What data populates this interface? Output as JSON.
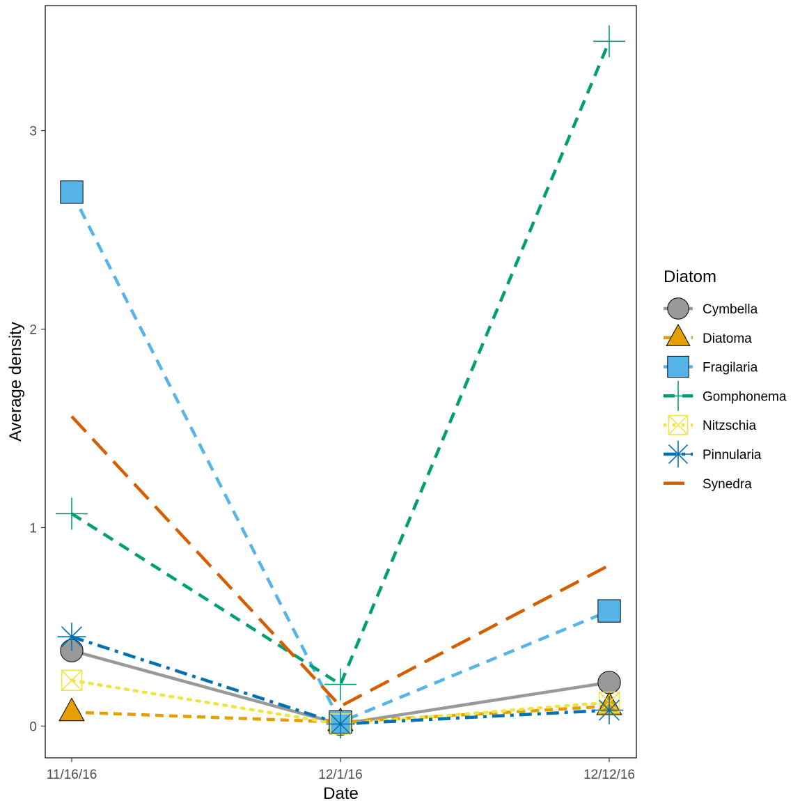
{
  "chart_data": {
    "type": "line",
    "title": "",
    "xlabel": "Date",
    "ylabel": "Average density",
    "categories": [
      "11/16/16",
      "12/1/16",
      "12/12/16"
    ],
    "ylim": [
      -0.16,
      3.63
    ],
    "yticks": [
      "0",
      "1",
      "2",
      "3"
    ],
    "grid": false,
    "legend": {
      "title": "Diatom",
      "placement": "right"
    },
    "series": [
      {
        "name": "Cymbella",
        "values": [
          0.38,
          0.01,
          0.22
        ],
        "color": "#999999",
        "shape": "circle",
        "dash": "solid"
      },
      {
        "name": "Diatoma",
        "values": [
          0.07,
          0.02,
          0.1
        ],
        "color": "#E69F00",
        "shape": "triangle",
        "dash": "short-dash"
      },
      {
        "name": "Fragilaria",
        "values": [
          2.69,
          0.02,
          0.58
        ],
        "color": "#56B4E9",
        "shape": "square",
        "dash": "dash"
      },
      {
        "name": "Gomphonema",
        "values": [
          1.07,
          0.21,
          3.45
        ],
        "color": "#009E73",
        "shape": "plus",
        "dash": "dash"
      },
      {
        "name": "Nitzschia",
        "values": [
          0.23,
          0.01,
          0.12
        ],
        "color": "#F0E442",
        "shape": "square-cross",
        "dash": "dotted"
      },
      {
        "name": "Pinnularia",
        "values": [
          0.45,
          0.01,
          0.08
        ],
        "color": "#0072B2",
        "shape": "asterisk",
        "dash": "dash-dot"
      },
      {
        "name": "Synedra",
        "values": [
          1.56,
          0.1,
          0.81
        ],
        "color": "#D55E00",
        "shape": "none",
        "dash": "long-dash"
      }
    ]
  }
}
